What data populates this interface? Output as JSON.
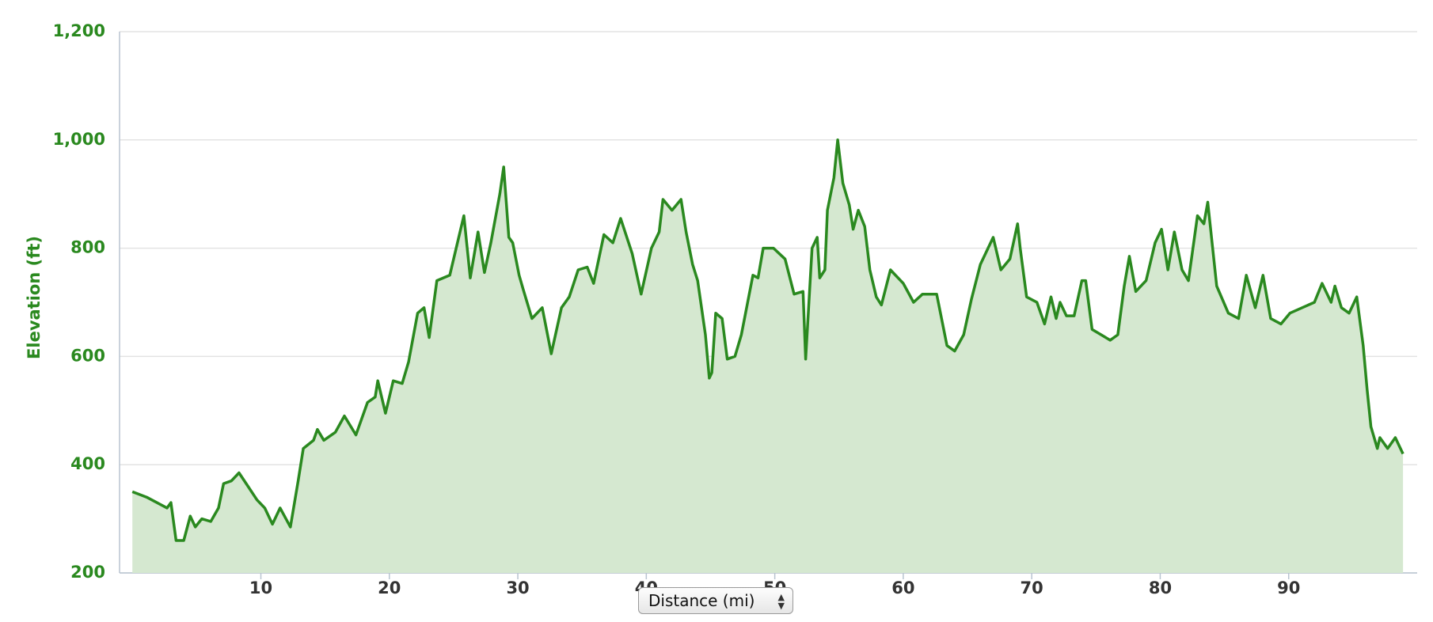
{
  "chart_data": {
    "type": "area",
    "y_label": "Elevation (ft)",
    "x_label": "Distance (mi)",
    "color": "#2a891f",
    "fill": "#d5e8d0",
    "xlim": [
      -1,
      100
    ],
    "xticks": [
      10,
      20,
      30,
      40,
      50,
      60,
      70,
      80,
      90
    ],
    "ylim": [
      200,
      1200
    ],
    "yticks": [
      200,
      400,
      600,
      800,
      {
        "value": 1000,
        "label": "1,000"
      },
      {
        "value": 1200,
        "label": "1,200"
      }
    ],
    "grid": true,
    "x": [
      0,
      1.1,
      1.9,
      2.7,
      3,
      3.4,
      4,
      4.5,
      4.9,
      5.4,
      6.1,
      6.7,
      7.1,
      7.7,
      8.3,
      9,
      9.7,
      10.3,
      10.9,
      11.5,
      12.3,
      12.9,
      13.3,
      14.1,
      14.4,
      14.9,
      15.8,
      16.5,
      17.4,
      18.3,
      18.9,
      19.1,
      19.7,
      20.3,
      21,
      21.5,
      22.2,
      22.7,
      23.1,
      23.7,
      24.7,
      25.3,
      25.8,
      26.3,
      26.9,
      27.4,
      27.9,
      28.6,
      28.9,
      29.3,
      29.6,
      30.1,
      30.4,
      31.1,
      31.9,
      32.6,
      33.4,
      34,
      34.7,
      35.4,
      35.9,
      36.7,
      37.4,
      38,
      38.9,
      39.6,
      40.4,
      41,
      41.3,
      42,
      42.7,
      43.1,
      43.6,
      44,
      44.6,
      44.9,
      45.1,
      45.4,
      45.9,
      46.3,
      46.9,
      47.4,
      48.3,
      48.7,
      49.1,
      49.9,
      50.8,
      51.5,
      52.2,
      52.4,
      52.9,
      53.3,
      53.5,
      53.9,
      54.1,
      54.6,
      54.9,
      55.3,
      55.8,
      56.1,
      56.5,
      57,
      57.4,
      57.9,
      58.3,
      59,
      60,
      60.8,
      61.5,
      62.6,
      63.4,
      64,
      64.7,
      65.3,
      66,
      67,
      67.6,
      68.3,
      68.9,
      69.1,
      69.6,
      70.4,
      71,
      71.5,
      71.9,
      72.2,
      72.7,
      73.3,
      73.9,
      74.2,
      74.7,
      75.4,
      76.1,
      76.7,
      77.2,
      77.6,
      78.1,
      78.9,
      79.6,
      80.1,
      80.6,
      81.1,
      81.7,
      82.2,
      82.9,
      83.4,
      83.7,
      84.4,
      85.3,
      86.1,
      86.7,
      87.4,
      88,
      88.6,
      89.4,
      90.1,
      92,
      92.6,
      93.3,
      93.6,
      94.1,
      94.7,
      95.3,
      95.8,
      96.1,
      96.4,
      96.9,
      97.1,
      97.7,
      98.3,
      98.9
    ],
    "values": [
      350,
      340,
      330,
      320,
      330,
      260,
      260,
      305,
      285,
      300,
      295,
      320,
      365,
      370,
      385,
      360,
      335,
      320,
      290,
      320,
      285,
      370,
      430,
      445,
      465,
      445,
      460,
      490,
      455,
      515,
      525,
      555,
      495,
      555,
      550,
      590,
      680,
      690,
      635,
      740,
      750,
      810,
      860,
      745,
      830,
      755,
      810,
      900,
      950,
      820,
      810,
      750,
      725,
      670,
      690,
      605,
      690,
      710,
      760,
      765,
      735,
      825,
      810,
      855,
      790,
      715,
      800,
      830,
      890,
      870,
      890,
      830,
      770,
      740,
      640,
      560,
      570,
      680,
      670,
      595,
      600,
      640,
      750,
      745,
      800,
      800,
      780,
      715,
      720,
      595,
      800,
      820,
      745,
      760,
      870,
      930,
      1000,
      920,
      880,
      835,
      870,
      840,
      760,
      710,
      695,
      760,
      735,
      700,
      715,
      715,
      620,
      610,
      640,
      705,
      770,
      820,
      760,
      780,
      845,
      800,
      710,
      700,
      660,
      710,
      670,
      700,
      675,
      675,
      740,
      740,
      650,
      640,
      630,
      640,
      730,
      785,
      720,
      740,
      810,
      835,
      760,
      830,
      760,
      740,
      860,
      845,
      885,
      730,
      680,
      670,
      750,
      690,
      750,
      670,
      660,
      680,
      700,
      735,
      700,
      730,
      690,
      680,
      710,
      620,
      540,
      470,
      430,
      450,
      430,
      450,
      420
    ]
  }
}
